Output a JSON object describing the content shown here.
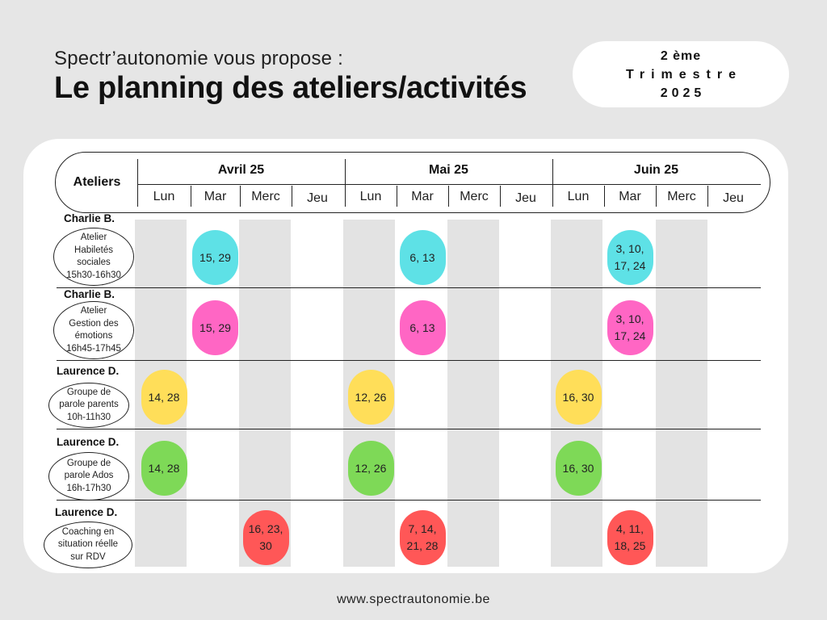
{
  "header": {
    "subtitle": "Spectr’autonomie vous propose :",
    "title": "Le planning des ateliers/activités",
    "period": {
      "line1": "2 ème",
      "line2": "Trimestre",
      "line3": "2025"
    }
  },
  "table": {
    "ateliers_label": "Ateliers",
    "months": [
      "Avril 25",
      "Mai 25",
      "Juin 25"
    ],
    "days": [
      "Lun",
      "Mar",
      "Merc",
      "Jeu"
    ],
    "rows": [
      {
        "person": "Charlie B.",
        "label": "Atelier\nHabiletés\nsociales\n15h30-16h30",
        "color": "#5ee1e6",
        "cells": [
          {
            "month": 0,
            "day": 1,
            "text": "15, 29"
          },
          {
            "month": 1,
            "day": 1,
            "text": "6, 13"
          },
          {
            "month": 2,
            "day": 1,
            "text": "3, 10,\n17, 24"
          }
        ]
      },
      {
        "person": "Charlie B.",
        "label": "Atelier\nGestion des\némotions\n16h45-17h45",
        "color": "#ff66c4",
        "cells": [
          {
            "month": 0,
            "day": 1,
            "text": "15, 29"
          },
          {
            "month": 1,
            "day": 1,
            "text": "6, 13"
          },
          {
            "month": 2,
            "day": 1,
            "text": "3, 10,\n17, 24"
          }
        ]
      },
      {
        "person": "Laurence D.",
        "label": "Groupe de\nparole parents\n10h-11h30",
        "color": "#ffde59",
        "cells": [
          {
            "month": 0,
            "day": 0,
            "text": "14, 28"
          },
          {
            "month": 1,
            "day": 0,
            "text": "12, 26"
          },
          {
            "month": 2,
            "day": 0,
            "text": "16, 30"
          }
        ]
      },
      {
        "person": "Laurence D.",
        "label": "Groupe de\nparole Ados\n16h-17h30",
        "color": "#7ed957",
        "cells": [
          {
            "month": 0,
            "day": 0,
            "text": "14, 28"
          },
          {
            "month": 1,
            "day": 0,
            "text": "12, 26"
          },
          {
            "month": 2,
            "day": 0,
            "text": "16, 30"
          }
        ]
      },
      {
        "person": "Laurence D.",
        "label": "Coaching en\nsituation réelle\nsur RDV",
        "color": "#ff5757",
        "cells": [
          {
            "month": 0,
            "day": 2,
            "text": "16, 23,\n30"
          },
          {
            "month": 1,
            "day": 1,
            "text": "7, 14,\n21, 28"
          },
          {
            "month": 2,
            "day": 1,
            "text": "4, 11,\n18, 25"
          }
        ]
      }
    ]
  },
  "footer": {
    "website": "www.spectrautonomie.be"
  }
}
